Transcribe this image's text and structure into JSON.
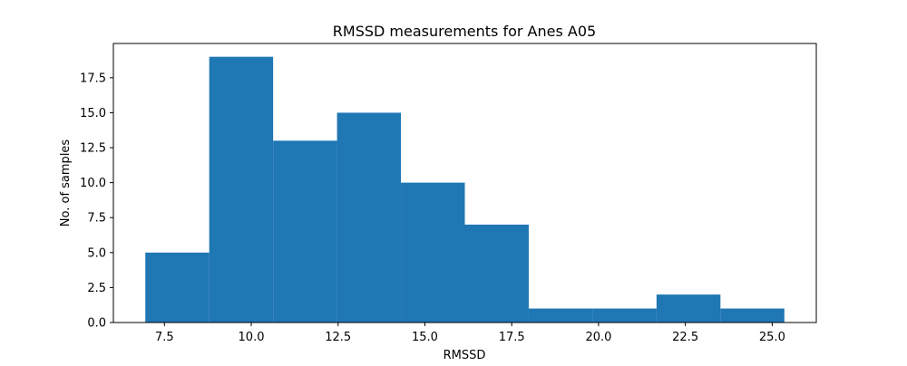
{
  "chart_data": {
    "type": "bar",
    "title": "RMSSD measurements for Anes A05",
    "xlabel": "RMSSD",
    "ylabel": "No. of samples",
    "bins": [
      {
        "x0": 6.95,
        "x1": 8.79,
        "count": 5
      },
      {
        "x0": 8.79,
        "x1": 10.63,
        "count": 19
      },
      {
        "x0": 10.63,
        "x1": 12.47,
        "count": 13
      },
      {
        "x0": 12.47,
        "x1": 14.31,
        "count": 15
      },
      {
        "x0": 14.31,
        "x1": 16.15,
        "count": 10
      },
      {
        "x0": 16.15,
        "x1": 17.99,
        "count": 7
      },
      {
        "x0": 17.99,
        "x1": 19.83,
        "count": 1
      },
      {
        "x0": 19.83,
        "x1": 21.67,
        "count": 1
      },
      {
        "x0": 21.67,
        "x1": 23.51,
        "count": 2
      },
      {
        "x0": 23.51,
        "x1": 25.35,
        "count": 1
      }
    ],
    "xlim": [
      6.03,
      26.27
    ],
    "ylim": [
      0,
      19.95
    ],
    "xticks": [
      "7.5",
      "10.0",
      "12.5",
      "15.0",
      "17.5",
      "20.0",
      "22.5",
      "25.0"
    ],
    "yticks": [
      "0.0",
      "2.5",
      "5.0",
      "7.5",
      "10.0",
      "12.5",
      "15.0",
      "17.5"
    ],
    "bar_color": "#1f77b4",
    "grid": false,
    "legend": "none"
  }
}
